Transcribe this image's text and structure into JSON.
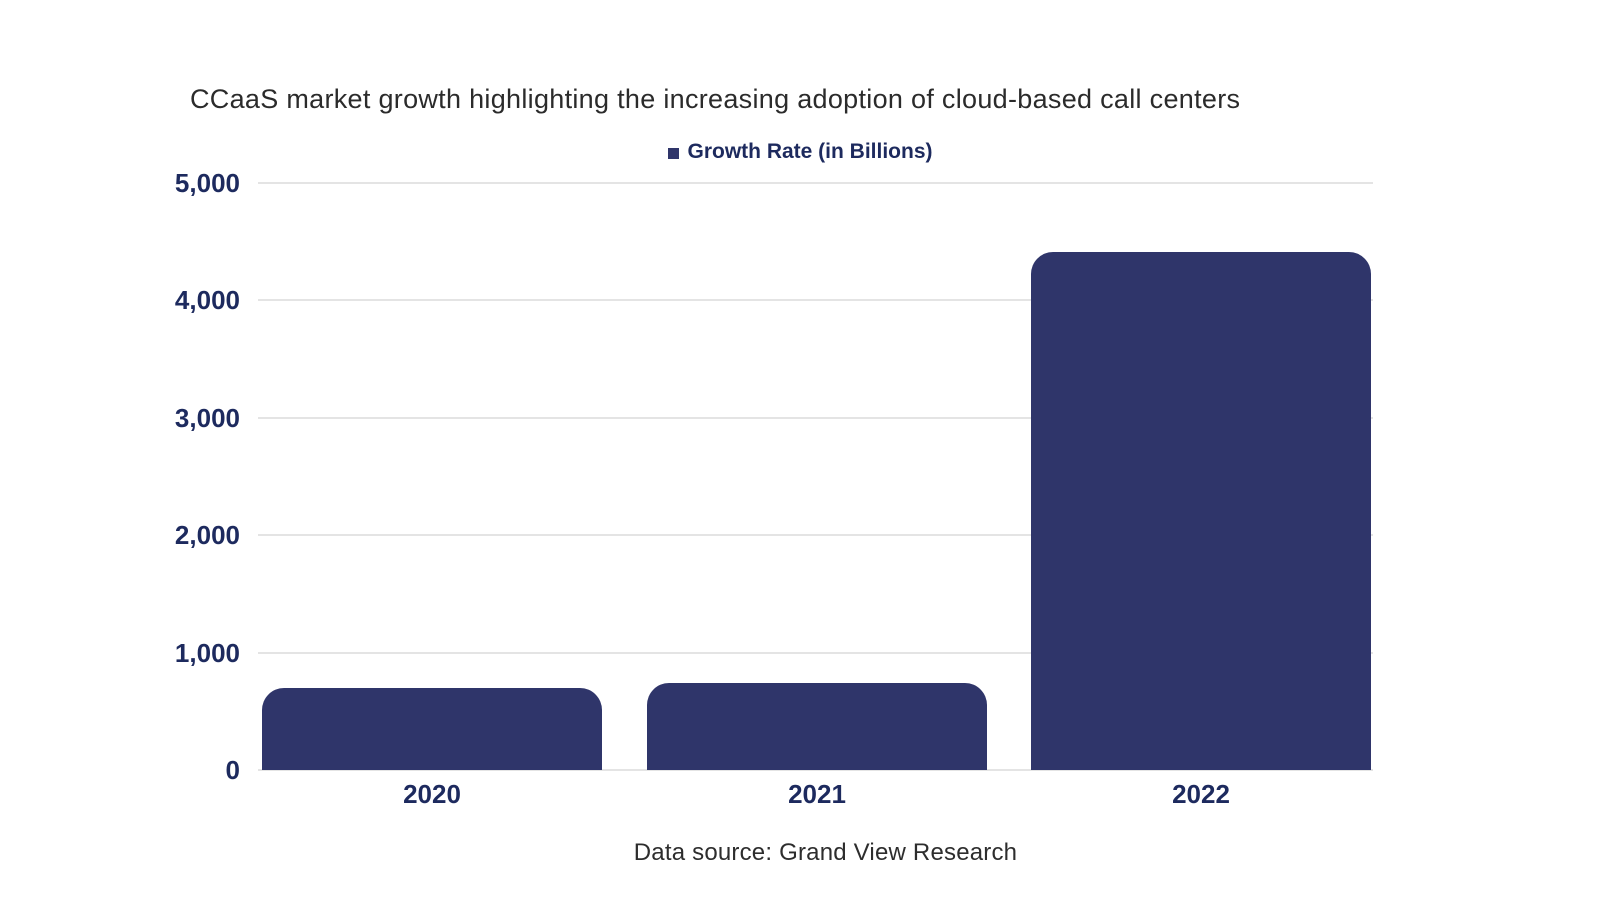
{
  "chart_data": {
    "type": "bar",
    "title": "CCaaS market growth highlighting the increasing adoption of cloud-based call centers",
    "series": [
      {
        "name": "Growth Rate (in Billions)",
        "values": [
          700,
          740,
          4410
        ]
      }
    ],
    "categories": [
      "2020",
      "2021",
      "2022"
    ],
    "ylim": [
      0,
      5000
    ],
    "yticks": [
      0,
      1000,
      2000,
      3000,
      4000,
      5000
    ],
    "ytick_labels": [
      "0",
      "1,000",
      "2,000",
      "3,000",
      "4,000",
      "5,000"
    ],
    "grid": "horizontal-light-gray",
    "legend_position": "top-center",
    "legend_marker": "small-square",
    "bar_corner": "rounded-top",
    "source_note": "Data source: Grand View Research",
    "colors": {
      "bar": "#2f356a",
      "axis_text": "#1d2a5e",
      "title_text": "#2b2b2b",
      "gridline": "#e4e4e4",
      "source_text": "#2d2d2d",
      "background": "#ffffff"
    }
  }
}
